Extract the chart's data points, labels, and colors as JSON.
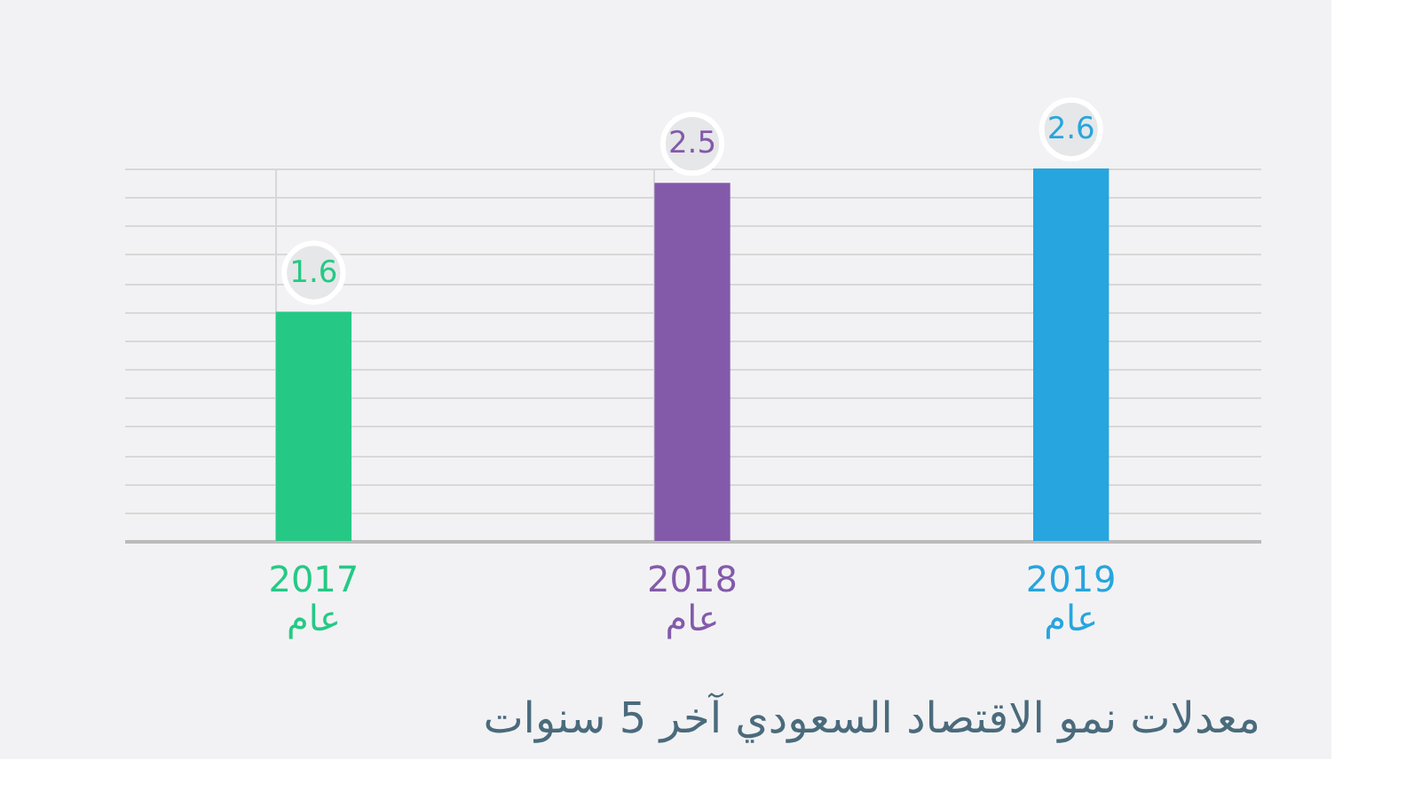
{
  "chart_data": {
    "type": "bar",
    "title": "معدلات نمو الاقتصاد السعودي آخر 5 سنوات",
    "categories": [
      "2017 عام",
      "2018 عام",
      "2019 عام"
    ],
    "values": [
      1.6,
      2.5,
      2.6
    ],
    "colors": [
      "#25c985",
      "#835aaa",
      "#27a5de"
    ],
    "data_labels": true,
    "grid": true
  }
}
